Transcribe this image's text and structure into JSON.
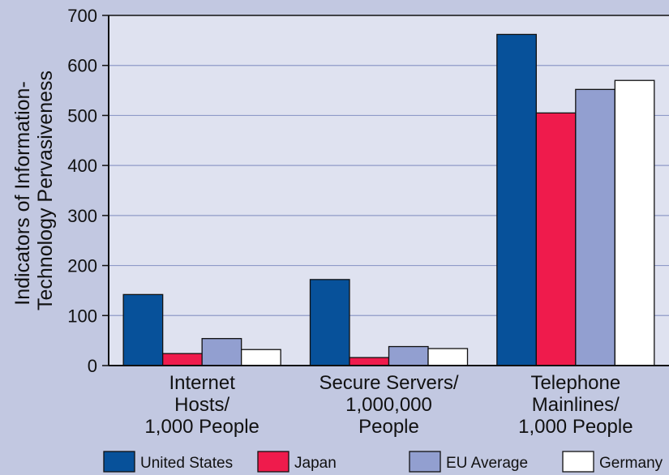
{
  "chart_data": {
    "type": "bar",
    "title": "",
    "ylabel_lines": [
      "Indicators of Information-",
      "Technology Pervasiveness"
    ],
    "xlabel": "",
    "ylim": [
      0,
      700
    ],
    "yticks": [
      0,
      100,
      200,
      300,
      400,
      500,
      600,
      700
    ],
    "grid": true,
    "legend_position": "bottom",
    "categories": [
      [
        "Internet",
        "Hosts/",
        "1,000 People"
      ],
      [
        "Secure Servers/",
        "1,000,000",
        "People"
      ],
      [
        "Telephone",
        "Mainlines/",
        "1,000 People"
      ]
    ],
    "series": [
      {
        "name": "United States",
        "color": "#07519a",
        "values": [
          142,
          172,
          662
        ]
      },
      {
        "name": "Japan",
        "color": "#ef1b4c",
        "values": [
          24,
          16,
          505
        ]
      },
      {
        "name": "EU Average",
        "color": "#929fd0",
        "values": [
          54,
          38,
          552
        ]
      },
      {
        "name": "Germany",
        "color": "#ffffff",
        "values": [
          32,
          34,
          570
        ]
      }
    ]
  }
}
